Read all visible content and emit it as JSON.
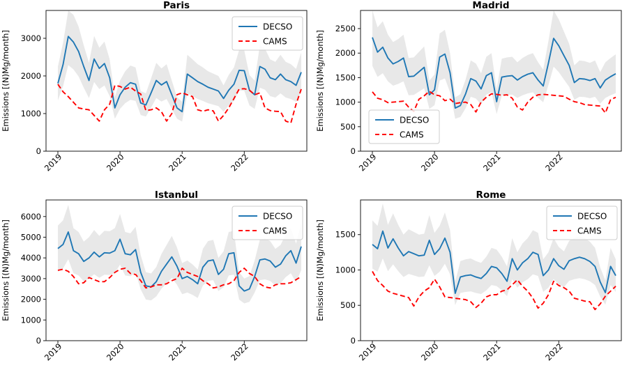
{
  "figure": {
    "background": "#ffffff",
    "decso_color": "#1f77b4",
    "cams_color": "#ff0000",
    "band_color": "#c8c8c8",
    "axis_color": "#1a1a1a"
  },
  "chart_data": [
    {
      "type": "line",
      "title": "Paris",
      "ylabel": "Emissions [(N)Mg/month]",
      "xlabel": "",
      "x_start": "2019-01",
      "x_end": "2022-12",
      "x_tick_labels": [
        "2019",
        "2020",
        "2021",
        "2022"
      ],
      "x_tick_month_indices": [
        0,
        12,
        24,
        36
      ],
      "ylim": [
        0,
        3740
      ],
      "yticks": [
        0,
        1000,
        2000,
        3000
      ],
      "grid": false,
      "legend_loc": "upper right",
      "band": {
        "series": "DECSO",
        "fraction": 0.25
      },
      "series": [
        {
          "name": "DECSO",
          "style": "solid",
          "values": [
            1800,
            2300,
            3050,
            2900,
            2650,
            2250,
            1880,
            2450,
            2200,
            2330,
            1950,
            1150,
            1500,
            1700,
            1820,
            1780,
            1280,
            1230,
            1550,
            1880,
            1760,
            1850,
            1500,
            1150,
            1050,
            2050,
            1950,
            1850,
            1780,
            1700,
            1650,
            1600,
            1400,
            1620,
            1780,
            2150,
            2140,
            1620,
            1500,
            2250,
            2180,
            1950,
            1900,
            2050,
            1900,
            1850,
            1750,
            2100
          ]
        },
        {
          "name": "CAMS",
          "style": "dashed",
          "values": [
            1780,
            1580,
            1450,
            1300,
            1150,
            1120,
            1100,
            950,
            800,
            1100,
            1250,
            1750,
            1720,
            1650,
            1700,
            1600,
            1520,
            1080,
            1100,
            1150,
            1050,
            800,
            1000,
            1500,
            1550,
            1500,
            1450,
            1100,
            1060,
            1100,
            1070,
            800,
            950,
            1150,
            1400,
            1650,
            1660,
            1620,
            1500,
            1550,
            1150,
            1080,
            1060,
            1050,
            800,
            750,
            1250,
            1650
          ]
        }
      ]
    },
    {
      "type": "line",
      "title": "Madrid",
      "ylabel": "Emissions [(N)Mg/month]",
      "xlabel": "",
      "x_start": "2019-01",
      "x_end": "2022-12",
      "x_tick_labels": [
        "2019",
        "2020",
        "2021",
        "2022"
      ],
      "x_tick_month_indices": [
        0,
        12,
        24,
        36
      ],
      "ylim": [
        0,
        2870
      ],
      "yticks": [
        0,
        500,
        1000,
        1500,
        2000,
        2500
      ],
      "grid": false,
      "legend_loc": "center left",
      "band": {
        "series": "DECSO",
        "fraction": 0.25
      },
      "series": [
        {
          "name": "DECSO",
          "style": "solid",
          "values": [
            2320,
            2020,
            2120,
            1900,
            1780,
            1830,
            1900,
            1520,
            1530,
            1620,
            1710,
            1150,
            1250,
            1920,
            1980,
            1600,
            880,
            930,
            1170,
            1480,
            1430,
            1270,
            1540,
            1600,
            1010,
            1510,
            1530,
            1540,
            1450,
            1520,
            1570,
            1600,
            1450,
            1330,
            1800,
            2300,
            2150,
            1950,
            1750,
            1400,
            1480,
            1470,
            1440,
            1480,
            1290,
            1450,
            1520,
            1580
          ]
        },
        {
          "name": "CAMS",
          "style": "dashed",
          "values": [
            1210,
            1080,
            1050,
            990,
            1000,
            1010,
            1020,
            900,
            810,
            1060,
            1130,
            1220,
            1150,
            1130,
            1030,
            1060,
            970,
            990,
            1000,
            950,
            800,
            1000,
            1100,
            1170,
            1160,
            1140,
            1150,
            1080,
            900,
            840,
            1000,
            1100,
            1150,
            1160,
            1150,
            1140,
            1130,
            1120,
            1060,
            1010,
            990,
            950,
            940,
            930,
            920,
            780,
            1050,
            1100
          ]
        }
      ]
    },
    {
      "type": "line",
      "title": "Istanbul",
      "ylabel": "Emissions [(N)Mg/month]",
      "xlabel": "",
      "x_start": "2019-01",
      "x_end": "2022-12",
      "x_tick_labels": [
        "2019",
        "2020",
        "2021",
        "2022"
      ],
      "x_tick_month_indices": [
        0,
        12,
        24,
        36
      ],
      "ylim": [
        0,
        6800
      ],
      "yticks": [
        0,
        1000,
        2000,
        3000,
        4000,
        5000,
        6000
      ],
      "grid": false,
      "legend_loc": "upper right",
      "band": {
        "series": "DECSO",
        "fraction": 0.25
      },
      "series": [
        {
          "name": "DECSO",
          "style": "solid",
          "values": [
            4450,
            4650,
            5250,
            4350,
            4200,
            3830,
            4000,
            4280,
            4050,
            4250,
            4230,
            4350,
            4900,
            4200,
            4150,
            4400,
            3300,
            2650,
            2600,
            2850,
            3350,
            3700,
            4050,
            3600,
            3000,
            3100,
            2950,
            2750,
            3550,
            3850,
            3900,
            3200,
            3450,
            4200,
            4250,
            2650,
            2400,
            2500,
            3100,
            3900,
            3950,
            3850,
            3550,
            3700,
            4100,
            4350,
            3750,
            4550
          ]
        },
        {
          "name": "CAMS",
          "style": "dashed",
          "values": [
            3400,
            3450,
            3350,
            3100,
            2750,
            2800,
            3050,
            2950,
            2850,
            2850,
            3050,
            3300,
            3450,
            3500,
            3250,
            3200,
            2900,
            2550,
            2600,
            2700,
            2700,
            2750,
            2900,
            3000,
            3500,
            3300,
            3200,
            3100,
            2900,
            2750,
            2550,
            2600,
            2700,
            2750,
            2900,
            3300,
            3500,
            3250,
            3100,
            2750,
            2600,
            2550,
            2700,
            2750,
            2750,
            2800,
            2950,
            3100
          ]
        }
      ]
    },
    {
      "type": "line",
      "title": "Rome",
      "ylabel": "Emissions [(N)Mg/month]",
      "xlabel": "",
      "x_start": "2019-01",
      "x_end": "2022-12",
      "x_tick_labels": [
        "2019",
        "2020",
        "2021",
        "2022"
      ],
      "x_tick_month_indices": [
        0,
        12,
        24,
        36
      ],
      "ylim": [
        0,
        1990
      ],
      "yticks": [
        0,
        500,
        1000,
        1500
      ],
      "grid": false,
      "legend_loc": "upper right",
      "band": {
        "series": "DECSO",
        "fraction": 0.25
      },
      "series": [
        {
          "name": "DECSO",
          "style": "solid",
          "values": [
            1360,
            1300,
            1550,
            1310,
            1440,
            1310,
            1200,
            1260,
            1230,
            1200,
            1210,
            1420,
            1220,
            1300,
            1450,
            1250,
            670,
            900,
            920,
            930,
            900,
            880,
            950,
            1050,
            1030,
            950,
            840,
            1160,
            1000,
            1100,
            1160,
            1250,
            1220,
            920,
            1000,
            1160,
            1060,
            1010,
            1130,
            1160,
            1180,
            1160,
            1120,
            1050,
            830,
            680,
            1050,
            920
          ]
        },
        {
          "name": "CAMS",
          "style": "dashed",
          "values": [
            980,
            850,
            780,
            700,
            670,
            650,
            630,
            610,
            490,
            620,
            700,
            750,
            870,
            760,
            620,
            610,
            600,
            590,
            580,
            550,
            470,
            530,
            620,
            650,
            650,
            700,
            720,
            790,
            860,
            770,
            700,
            600,
            460,
            530,
            650,
            840,
            780,
            750,
            700,
            600,
            580,
            560,
            550,
            440,
            520,
            630,
            700,
            770
          ]
        }
      ]
    }
  ]
}
